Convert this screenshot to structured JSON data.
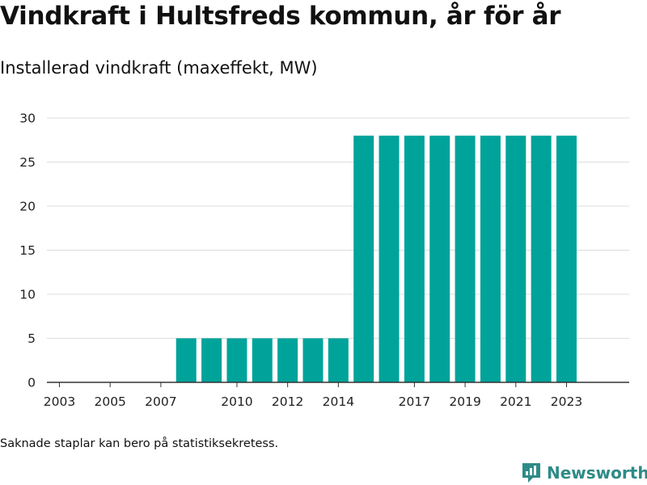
{
  "title": "Vindkraft i Hultsfreds kommun, år för år",
  "subtitle": "Installerad vindkraft (maxeffekt, MW)",
  "note": "Saknade staplar kan bero på statistiksekretess.",
  "brand": {
    "name": "Newsworthy",
    "icon": "newsworthy-logo-icon"
  },
  "colors": {
    "bar": "#00a39a",
    "grid": "#dddddd",
    "axis": "#333333",
    "brand": "#2e8b87"
  },
  "chart_data": {
    "type": "bar",
    "title": "Vindkraft i Hultsfreds kommun, år för år",
    "subtitle": "Installerad vindkraft (maxeffekt, MW)",
    "xlabel": "",
    "ylabel": "",
    "categories": [
      2003,
      2004,
      2005,
      2006,
      2007,
      2008,
      2009,
      2010,
      2011,
      2012,
      2013,
      2014,
      2015,
      2016,
      2017,
      2018,
      2019,
      2020,
      2021,
      2022,
      2023
    ],
    "values": [
      0,
      0,
      0,
      0,
      0,
      5,
      5,
      5,
      5,
      5,
      5,
      5,
      28,
      28,
      28,
      28,
      28,
      28,
      28,
      28,
      28
    ],
    "x_tick_labels": [
      "2003",
      "2005",
      "2007",
      "2010",
      "2012",
      "2014",
      "2017",
      "2019",
      "2021",
      "2023"
    ],
    "y_ticks": [
      0,
      5,
      10,
      15,
      20,
      25,
      30
    ],
    "ylim": [
      0,
      30
    ],
    "grid": true,
    "legend": "none"
  }
}
